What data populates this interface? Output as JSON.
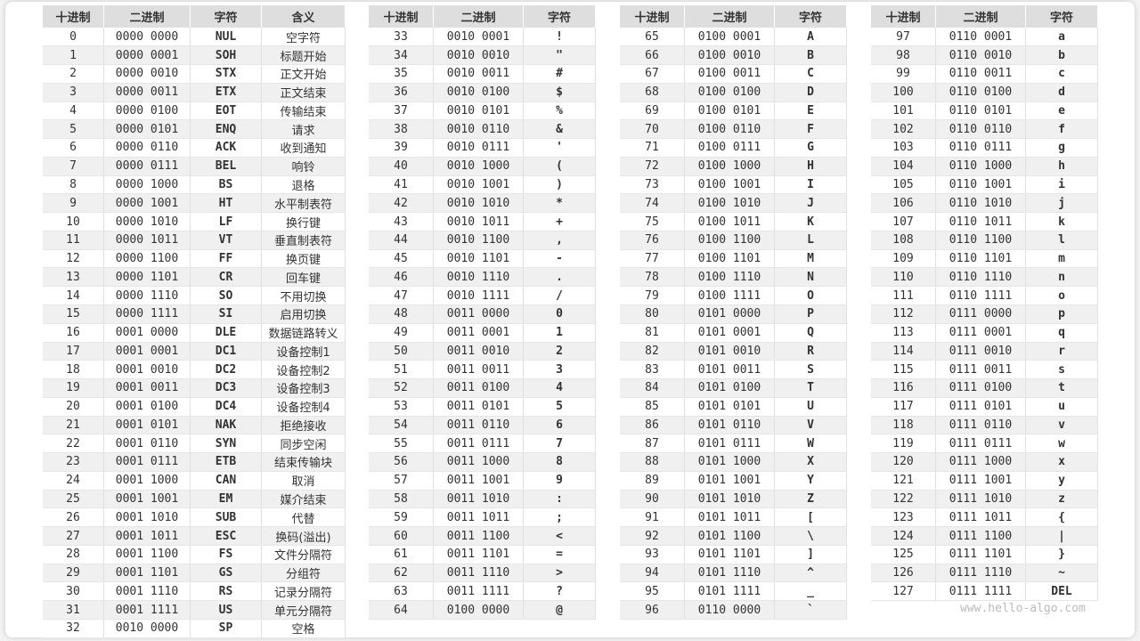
{
  "tables": [
    {
      "headers": [
        "十进制",
        "二进制",
        "字符",
        "含义"
      ],
      "rows": [
        [
          "0",
          "0000 0000",
          "NUL",
          "空字符"
        ],
        [
          "1",
          "0000 0001",
          "SOH",
          "标题开始"
        ],
        [
          "2",
          "0000 0010",
          "STX",
          "正文开始"
        ],
        [
          "3",
          "0000 0011",
          "ETX",
          "正文结束"
        ],
        [
          "4",
          "0000 0100",
          "EOT",
          "传输结束"
        ],
        [
          "5",
          "0000 0101",
          "ENQ",
          "请求"
        ],
        [
          "6",
          "0000 0110",
          "ACK",
          "收到通知"
        ],
        [
          "7",
          "0000 0111",
          "BEL",
          "响铃"
        ],
        [
          "8",
          "0000 1000",
          "BS",
          "退格"
        ],
        [
          "9",
          "0000 1001",
          "HT",
          "水平制表符"
        ],
        [
          "10",
          "0000 1010",
          "LF",
          "换行键"
        ],
        [
          "11",
          "0000 1011",
          "VT",
          "垂直制表符"
        ],
        [
          "12",
          "0000 1100",
          "FF",
          "换页键"
        ],
        [
          "13",
          "0000 1101",
          "CR",
          "回车键"
        ],
        [
          "14",
          "0000 1110",
          "SO",
          "不用切换"
        ],
        [
          "15",
          "0000 1111",
          "SI",
          "启用切换"
        ],
        [
          "16",
          "0001 0000",
          "DLE",
          "数据链路转义"
        ],
        [
          "17",
          "0001 0001",
          "DC1",
          "设备控制1"
        ],
        [
          "18",
          "0001 0010",
          "DC2",
          "设备控制2"
        ],
        [
          "19",
          "0001 0011",
          "DC3",
          "设备控制3"
        ],
        [
          "20",
          "0001 0100",
          "DC4",
          "设备控制4"
        ],
        [
          "21",
          "0001 0101",
          "NAK",
          "拒绝接收"
        ],
        [
          "22",
          "0001 0110",
          "SYN",
          "同步空闲"
        ],
        [
          "23",
          "0001 0111",
          "ETB",
          "结束传输块"
        ],
        [
          "24",
          "0001 1000",
          "CAN",
          "取消"
        ],
        [
          "25",
          "0001 1001",
          "EM",
          "媒介结束"
        ],
        [
          "26",
          "0001 1010",
          "SUB",
          "代替"
        ],
        [
          "27",
          "0001 1011",
          "ESC",
          "换码(溢出)"
        ],
        [
          "28",
          "0001 1100",
          "FS",
          "文件分隔符"
        ],
        [
          "29",
          "0001 1101",
          "GS",
          "分组符"
        ],
        [
          "30",
          "0001 1110",
          "RS",
          "记录分隔符"
        ],
        [
          "31",
          "0001 1111",
          "US",
          "单元分隔符"
        ],
        [
          "32",
          "0010 0000",
          "SP",
          "空格"
        ]
      ]
    },
    {
      "headers": [
        "十进制",
        "二进制",
        "字符"
      ],
      "rows": [
        [
          "33",
          "0010 0001",
          "!"
        ],
        [
          "34",
          "0010 0010",
          "\""
        ],
        [
          "35",
          "0010 0011",
          "#"
        ],
        [
          "36",
          "0010 0100",
          "$"
        ],
        [
          "37",
          "0010 0101",
          "%"
        ],
        [
          "38",
          "0010 0110",
          "&"
        ],
        [
          "39",
          "0010 0111",
          "'"
        ],
        [
          "40",
          "0010 1000",
          "("
        ],
        [
          "41",
          "0010 1001",
          ")"
        ],
        [
          "42",
          "0010 1010",
          "*"
        ],
        [
          "43",
          "0010 1011",
          "+"
        ],
        [
          "44",
          "0010 1100",
          ","
        ],
        [
          "45",
          "0010 1101",
          "-"
        ],
        [
          "46",
          "0010 1110",
          "."
        ],
        [
          "47",
          "0010 1111",
          "/"
        ],
        [
          "48",
          "0011 0000",
          "0"
        ],
        [
          "49",
          "0011 0001",
          "1"
        ],
        [
          "50",
          "0011 0010",
          "2"
        ],
        [
          "51",
          "0011 0011",
          "3"
        ],
        [
          "52",
          "0011 0100",
          "4"
        ],
        [
          "53",
          "0011 0101",
          "5"
        ],
        [
          "54",
          "0011 0110",
          "6"
        ],
        [
          "55",
          "0011 0111",
          "7"
        ],
        [
          "56",
          "0011 1000",
          "8"
        ],
        [
          "57",
          "0011 1001",
          "9"
        ],
        [
          "58",
          "0011 1010",
          ":"
        ],
        [
          "59",
          "0011 1011",
          ";"
        ],
        [
          "60",
          "0011 1100",
          "<"
        ],
        [
          "61",
          "0011 1101",
          "="
        ],
        [
          "62",
          "0011 1110",
          ">"
        ],
        [
          "63",
          "0011 1111",
          "?"
        ],
        [
          "64",
          "0100 0000",
          "@"
        ]
      ]
    },
    {
      "headers": [
        "十进制",
        "二进制",
        "字符"
      ],
      "rows": [
        [
          "65",
          "0100 0001",
          "A"
        ],
        [
          "66",
          "0100 0010",
          "B"
        ],
        [
          "67",
          "0100 0011",
          "C"
        ],
        [
          "68",
          "0100 0100",
          "D"
        ],
        [
          "69",
          "0100 0101",
          "E"
        ],
        [
          "70",
          "0100 0110",
          "F"
        ],
        [
          "71",
          "0100 0111",
          "G"
        ],
        [
          "72",
          "0100 1000",
          "H"
        ],
        [
          "73",
          "0100 1001",
          "I"
        ],
        [
          "74",
          "0100 1010",
          "J"
        ],
        [
          "75",
          "0100 1011",
          "K"
        ],
        [
          "76",
          "0100 1100",
          "L"
        ],
        [
          "77",
          "0100 1101",
          "M"
        ],
        [
          "78",
          "0100 1110",
          "N"
        ],
        [
          "79",
          "0100 1111",
          "O"
        ],
        [
          "80",
          "0101 0000",
          "P"
        ],
        [
          "81",
          "0101 0001",
          "Q"
        ],
        [
          "82",
          "0101 0010",
          "R"
        ],
        [
          "83",
          "0101 0011",
          "S"
        ],
        [
          "84",
          "0101 0100",
          "T"
        ],
        [
          "85",
          "0101 0101",
          "U"
        ],
        [
          "86",
          "0101 0110",
          "V"
        ],
        [
          "87",
          "0101 0111",
          "W"
        ],
        [
          "88",
          "0101 1000",
          "X"
        ],
        [
          "89",
          "0101 1001",
          "Y"
        ],
        [
          "90",
          "0101 1010",
          "Z"
        ],
        [
          "91",
          "0101 1011",
          "["
        ],
        [
          "92",
          "0101 1100",
          "\\"
        ],
        [
          "93",
          "0101 1101",
          "]"
        ],
        [
          "94",
          "0101 1110",
          "^"
        ],
        [
          "95",
          "0101 1111",
          "_"
        ],
        [
          "96",
          "0110 0000",
          "`"
        ]
      ]
    },
    {
      "headers": [
        "十进制",
        "二进制",
        "字符"
      ],
      "rows": [
        [
          "97",
          "0110 0001",
          "a"
        ],
        [
          "98",
          "0110 0010",
          "b"
        ],
        [
          "99",
          "0110 0011",
          "c"
        ],
        [
          "100",
          "0110 0100",
          "d"
        ],
        [
          "101",
          "0110 0101",
          "e"
        ],
        [
          "102",
          "0110 0110",
          "f"
        ],
        [
          "103",
          "0110 0111",
          "g"
        ],
        [
          "104",
          "0110 1000",
          "h"
        ],
        [
          "105",
          "0110 1001",
          "i"
        ],
        [
          "106",
          "0110 1010",
          "j"
        ],
        [
          "107",
          "0110 1011",
          "k"
        ],
        [
          "108",
          "0110 1100",
          "l"
        ],
        [
          "109",
          "0110 1101",
          "m"
        ],
        [
          "110",
          "0110 1110",
          "n"
        ],
        [
          "111",
          "0110 1111",
          "o"
        ],
        [
          "112",
          "0111 0000",
          "p"
        ],
        [
          "113",
          "0111 0001",
          "q"
        ],
        [
          "114",
          "0111 0010",
          "r"
        ],
        [
          "115",
          "0111 0011",
          "s"
        ],
        [
          "116",
          "0111 0100",
          "t"
        ],
        [
          "117",
          "0111 0101",
          "u"
        ],
        [
          "118",
          "0111 0110",
          "v"
        ],
        [
          "119",
          "0111 0111",
          "w"
        ],
        [
          "120",
          "0111 1000",
          "x"
        ],
        [
          "121",
          "0111 1001",
          "y"
        ],
        [
          "122",
          "0111 1010",
          "z"
        ],
        [
          "123",
          "0111 1011",
          "{"
        ],
        [
          "124",
          "0111 1100",
          "|"
        ],
        [
          "125",
          "0111 1101",
          "}"
        ],
        [
          "126",
          "0111 1110",
          "~"
        ],
        [
          "127",
          "0111 1111",
          "DEL"
        ]
      ]
    }
  ],
  "watermark": "www.hello-algo.com"
}
